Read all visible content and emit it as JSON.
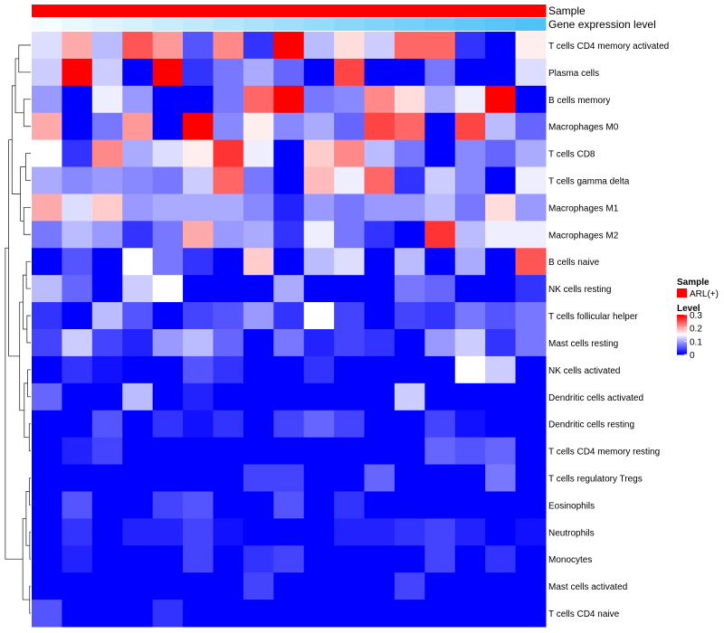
{
  "chart_data": {
    "type": "heatmap",
    "title": "",
    "annotation_rows": [
      {
        "name": "Sample",
        "label": "Sample"
      },
      {
        "name": "Gene expression level",
        "label": "Gene expression level"
      }
    ],
    "rows": [
      "T cells CD4 memory activated",
      "Plasma cells",
      "B cells memory",
      "Macrophages M0",
      "T cells CD8",
      "T cells gamma delta",
      "Macrophages M1",
      "Macrophages M2",
      "B cells naive",
      "NK cells resting",
      "T cells follicular helper",
      "Mast cells resting",
      "NK cells activated",
      "Dendritic cells activated",
      "Dendritic cells resting",
      "T cells CD4 memory resting",
      "T cells regulatory  Tregs",
      "Eosinophils",
      "Neutrophils",
      "Monocytes",
      "Mast cells activated",
      "T cells CD4 naive"
    ],
    "n_columns": 17,
    "values": [
      [
        0.13,
        0.2,
        0.11,
        0.25,
        0.21,
        0.05,
        0.22,
        0.03,
        0.3,
        0.11,
        0.17,
        0.12,
        0.24,
        0.24,
        0.03,
        0.0,
        0.16
      ],
      [
        0.12,
        0.3,
        0.12,
        0.0,
        0.3,
        0.03,
        0.07,
        0.1,
        0.06,
        0.0,
        0.26,
        0.0,
        0.0,
        0.07,
        0.0,
        0.0,
        0.13
      ],
      [
        0.09,
        0.0,
        0.14,
        0.09,
        0.0,
        0.0,
        0.07,
        0.24,
        0.3,
        0.07,
        0.08,
        0.22,
        0.17,
        0.1,
        0.14,
        0.3,
        0.0
      ],
      [
        0.2,
        0.0,
        0.07,
        0.21,
        0.0,
        0.3,
        0.08,
        0.16,
        0.08,
        0.1,
        0.06,
        0.26,
        0.24,
        0.0,
        0.26,
        0.11,
        0.06
      ],
      [
        0.15,
        0.03,
        0.22,
        0.1,
        0.13,
        0.16,
        0.27,
        0.14,
        0.0,
        0.18,
        0.22,
        0.11,
        0.07,
        0.0,
        0.08,
        0.06,
        0.1
      ],
      [
        0.1,
        0.08,
        0.09,
        0.08,
        0.07,
        0.12,
        0.24,
        0.07,
        0.0,
        0.19,
        0.14,
        0.24,
        0.03,
        0.12,
        0.08,
        0.0,
        0.14
      ],
      [
        0.2,
        0.13,
        0.18,
        0.09,
        0.1,
        0.1,
        0.1,
        0.08,
        0.02,
        0.09,
        0.07,
        0.09,
        0.09,
        0.11,
        0.07,
        0.17,
        0.09
      ],
      [
        0.07,
        0.11,
        0.09,
        0.03,
        0.07,
        0.2,
        0.09,
        0.1,
        0.03,
        0.14,
        0.07,
        0.03,
        0.0,
        0.27,
        0.11,
        0.14,
        0.14
      ],
      [
        0.0,
        0.05,
        0.0,
        0.15,
        0.07,
        0.03,
        0.0,
        0.18,
        0.0,
        0.11,
        0.13,
        0.0,
        0.11,
        0.0,
        0.1,
        0.0,
        0.25
      ],
      [
        0.11,
        0.06,
        0.0,
        0.12,
        0.15,
        0.0,
        0.0,
        0.0,
        0.1,
        0.0,
        0.0,
        0.0,
        0.07,
        0.06,
        0.0,
        0.0,
        0.03
      ],
      [
        0.03,
        0.0,
        0.11,
        0.05,
        0.0,
        0.04,
        0.05,
        0.09,
        0.03,
        0.15,
        0.04,
        0.0,
        0.04,
        0.03,
        0.07,
        0.05,
        0.07
      ],
      [
        0.04,
        0.12,
        0.04,
        0.02,
        0.09,
        0.11,
        0.06,
        0.0,
        0.07,
        0.02,
        0.04,
        0.03,
        0.0,
        0.09,
        0.12,
        0.03,
        0.07
      ],
      [
        0.0,
        0.03,
        0.01,
        0.0,
        0.0,
        0.05,
        0.03,
        0.0,
        0.0,
        0.03,
        0.0,
        0.0,
        0.0,
        0.0,
        0.15,
        0.12,
        0.0
      ],
      [
        0.06,
        0.0,
        0.0,
        0.11,
        0.0,
        0.02,
        0.0,
        0.0,
        0.0,
        0.0,
        0.0,
        0.0,
        0.12,
        0.0,
        0.0,
        0.0,
        0.0
      ],
      [
        0.0,
        0.0,
        0.05,
        0.0,
        0.03,
        0.01,
        0.03,
        0.0,
        0.04,
        0.06,
        0.04,
        0.0,
        0.0,
        0.04,
        0.01,
        0.0,
        0.0
      ],
      [
        0.0,
        0.02,
        0.04,
        0.0,
        0.0,
        0.0,
        0.0,
        0.0,
        0.0,
        0.0,
        0.0,
        0.0,
        0.0,
        0.06,
        0.05,
        0.06,
        0.0
      ],
      [
        0.0,
        0.0,
        0.0,
        0.0,
        0.0,
        0.0,
        0.0,
        0.04,
        0.04,
        0.0,
        0.0,
        0.06,
        0.0,
        0.0,
        0.0,
        0.07,
        0.0
      ],
      [
        0.0,
        0.05,
        0.0,
        0.0,
        0.04,
        0.05,
        0.0,
        0.0,
        0.05,
        0.0,
        0.03,
        0.0,
        0.0,
        0.0,
        0.0,
        0.0,
        0.0
      ],
      [
        0.0,
        0.03,
        0.0,
        0.02,
        0.02,
        0.04,
        0.01,
        0.0,
        0.0,
        0.0,
        0.02,
        0.02,
        0.03,
        0.04,
        0.02,
        0.0,
        0.01
      ],
      [
        0.0,
        0.02,
        0.0,
        0.0,
        0.0,
        0.04,
        0.0,
        0.03,
        0.04,
        0.0,
        0.0,
        0.0,
        0.0,
        0.04,
        0.0,
        0.03,
        0.0
      ],
      [
        0.0,
        0.0,
        0.0,
        0.0,
        0.0,
        0.0,
        0.0,
        0.04,
        0.0,
        0.0,
        0.0,
        0.0,
        0.04,
        0.0,
        0.0,
        0.0,
        0.0
      ],
      [
        0.05,
        0.0,
        0.0,
        0.0,
        0.03,
        0.0,
        0.0,
        0.0,
        0.0,
        0.0,
        0.0,
        0.0,
        0.0,
        0.0,
        0.0,
        0.0,
        0.0
      ]
    ],
    "gene_expression_level": [
      0.05,
      0.12,
      0.18,
      0.24,
      0.3,
      0.36,
      0.42,
      0.48,
      0.54,
      0.6,
      0.66,
      0.72,
      0.78,
      0.84,
      0.9,
      0.95,
      1.0
    ],
    "sample_groups": [
      "ARL(+)",
      "ARL(+)",
      "ARL(+)",
      "ARL(+)",
      "ARL(+)",
      "ARL(+)",
      "ARL(+)",
      "ARL(+)",
      "ARL(+)",
      "ARL(+)",
      "ARL(+)",
      "ARL(+)",
      "ARL(+)",
      "ARL(+)",
      "ARL(+)",
      "ARL(+)",
      "ARL(+)"
    ],
    "color_scale": {
      "low": "#0000ff",
      "mid": "#ffffff",
      "high": "#ff0000",
      "domain": [
        0,
        0.15,
        0.3
      ]
    },
    "gene_scale": {
      "low": "#ffffff",
      "high": "#4fc3f7"
    },
    "legend": {
      "sample_title": "Sample",
      "sample_entries": [
        {
          "label": "ARL(+)",
          "color": "#ff0000"
        }
      ],
      "level_title": "Level",
      "level_ticks": [
        "0.3",
        "0.2",
        "0.1",
        "0"
      ],
      "level_tick_values": [
        0.3,
        0.2,
        0.1,
        0
      ]
    },
    "dendrogram": {
      "merges": [
        [
          0,
          1,
          0.95
        ],
        [
          2,
          3,
          0.55
        ],
        [
          4,
          5,
          0.4
        ],
        [
          6,
          7,
          0.55
        ],
        [
          8,
          9,
          0.35
        ],
        [
          10,
          11,
          0.3
        ],
        [
          12,
          13,
          0.25
        ],
        [
          14,
          15,
          0.12
        ],
        [
          16,
          17,
          0.1
        ],
        [
          18,
          19,
          0.08
        ],
        [
          20,
          21,
          0.09
        ]
      ]
    }
  }
}
